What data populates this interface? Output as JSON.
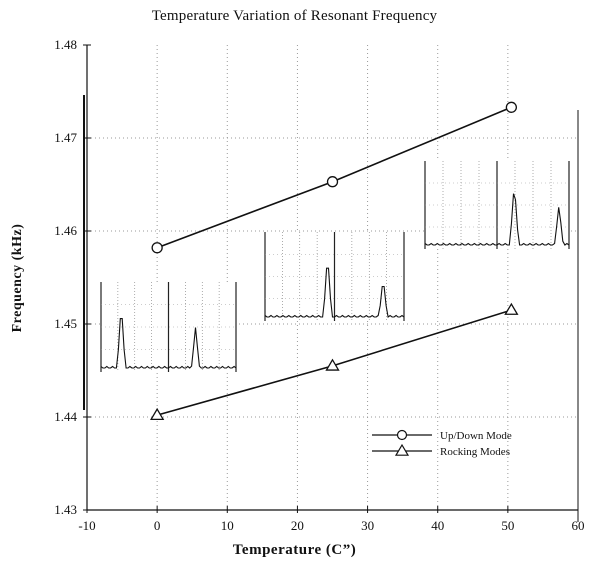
{
  "chart_data": {
    "type": "line",
    "title": "Temperature Variation of Resonant Frequency",
    "xlabel": "Temperature (C”)",
    "ylabel": "Frequency (kHz)",
    "xlim": [
      -10,
      60
    ],
    "ylim": [
      1.43,
      1.48
    ],
    "xticks": [
      -10,
      0,
      10,
      20,
      30,
      40,
      50,
      60
    ],
    "xtick_labels": [
      "-10",
      "0",
      "10",
      "20",
      "30",
      "40",
      "50",
      "60"
    ],
    "yticks": [
      1.43,
      1.44,
      1.45,
      1.46,
      1.47,
      1.48
    ],
    "ytick_labels": [
      "1.43",
      "1.44",
      "1.45",
      "1.46",
      "1.47",
      "1.48"
    ],
    "grid": true,
    "legend_position": "lower-right",
    "series": [
      {
        "name": "Up/Down Mode",
        "marker": "circle",
        "x": [
          0,
          25,
          50.5
        ],
        "y": [
          1.4582,
          1.4653,
          1.4733
        ]
      },
      {
        "name": "Rocking Modes",
        "marker": "triangle",
        "x": [
          0,
          25,
          50.5
        ],
        "y": [
          1.4402,
          1.4455,
          1.4515
        ]
      }
    ],
    "insets": [
      {
        "near_x": 0,
        "peaks": [
          0.15,
          0.7
        ]
      },
      {
        "near_x": 25,
        "peaks": [
          0.45,
          0.85
        ]
      },
      {
        "near_x": 50.5,
        "peaks": [
          0.62,
          0.93
        ]
      }
    ]
  },
  "colors": {
    "line": "#111111",
    "grid": "#9a9a9a",
    "background": "#ffffff"
  }
}
